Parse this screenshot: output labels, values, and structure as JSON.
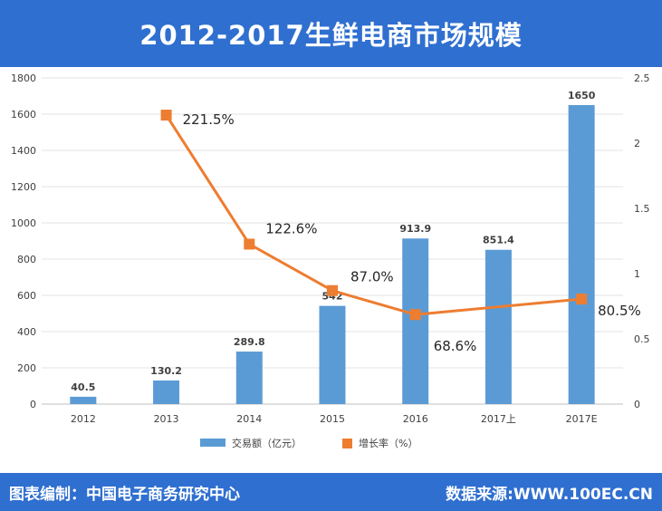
{
  "header": {
    "title": "2012-2017生鲜电商市场规模"
  },
  "footer": {
    "left": "图表编制：中国电子商务研究中心",
    "right": "数据来源:WWW.100EC.CN"
  },
  "colors": {
    "bar": "#5b9bd5",
    "line": "#ed7d31",
    "header_bg": "#2f6fd0"
  },
  "chart_data": {
    "type": "bar",
    "categories": [
      "2012",
      "2013",
      "2014",
      "2015",
      "2016",
      "2017上",
      "2017E"
    ],
    "series": [
      {
        "name": "交易额（亿元）",
        "type": "bar",
        "axis": "left",
        "values": [
          40.5,
          130.2,
          289.8,
          542,
          913.9,
          851.4,
          1650
        ],
        "labels": [
          "40.5",
          "130.2",
          "289.8",
          "542",
          "913.9",
          "851.4",
          "1650"
        ]
      },
      {
        "name": "增长率（%）",
        "type": "line",
        "axis": "right",
        "values": [
          null,
          2.215,
          1.226,
          0.87,
          0.686,
          null,
          0.805
        ],
        "labels": [
          null,
          "221.5%",
          "122.6%",
          "87.0%",
          "68.6%",
          null,
          "80.5%"
        ]
      }
    ],
    "y_left": {
      "ticks": [
        "0",
        "200",
        "400",
        "600",
        "800",
        "1000",
        "1200",
        "1400",
        "1600",
        "1800"
      ],
      "ylim": [
        0,
        1800
      ]
    },
    "y_right": {
      "ticks": [
        "0",
        "0.5",
        "1",
        "1.5",
        "2",
        "2.5"
      ],
      "ylim": [
        0,
        2.5
      ]
    },
    "legend_position": "bottom",
    "grid": true
  }
}
